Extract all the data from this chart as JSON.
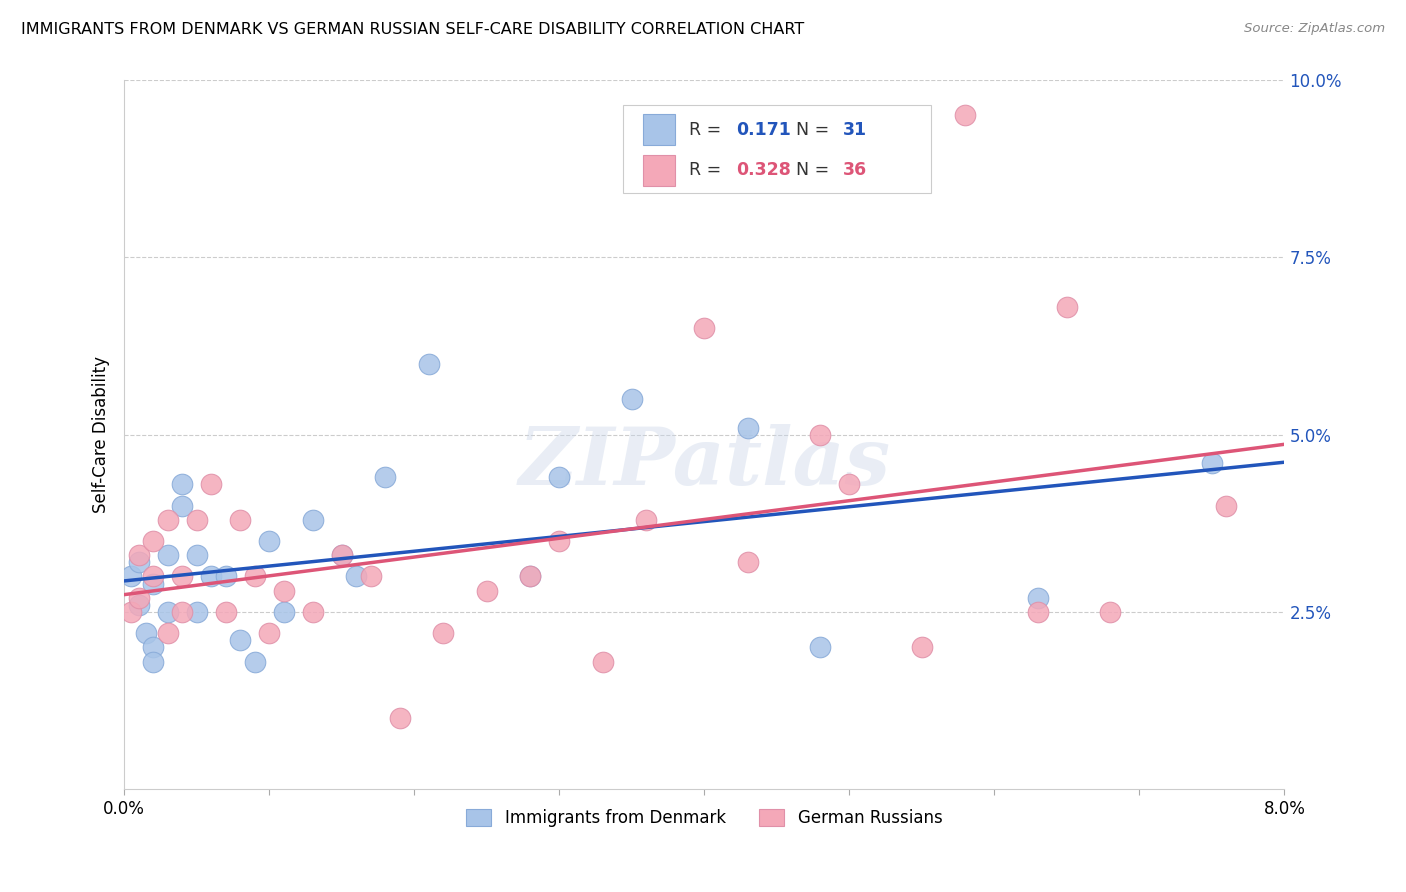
{
  "title": "IMMIGRANTS FROM DENMARK VS GERMAN RUSSIAN SELF-CARE DISABILITY CORRELATION CHART",
  "source": "Source: ZipAtlas.com",
  "ylabel": "Self-Care Disability",
  "xlim": [
    0.0,
    0.08
  ],
  "ylim": [
    0.0,
    0.1
  ],
  "color_blue": "#a8c4e8",
  "color_pink": "#f4a8b8",
  "line_color_blue": "#2255bb",
  "line_color_pink": "#dd5577",
  "denmark_x": [
    0.0005,
    0.001,
    0.001,
    0.0015,
    0.002,
    0.002,
    0.002,
    0.003,
    0.003,
    0.004,
    0.004,
    0.005,
    0.005,
    0.006,
    0.007,
    0.008,
    0.009,
    0.01,
    0.011,
    0.013,
    0.015,
    0.016,
    0.018,
    0.021,
    0.028,
    0.03,
    0.035,
    0.043,
    0.048,
    0.063,
    0.075
  ],
  "denmark_y": [
    0.03,
    0.032,
    0.026,
    0.022,
    0.029,
    0.02,
    0.018,
    0.033,
    0.025,
    0.04,
    0.043,
    0.033,
    0.025,
    0.03,
    0.03,
    0.021,
    0.018,
    0.035,
    0.025,
    0.038,
    0.033,
    0.03,
    0.044,
    0.06,
    0.03,
    0.044,
    0.055,
    0.051,
    0.02,
    0.027,
    0.046
  ],
  "german_x": [
    0.0005,
    0.001,
    0.001,
    0.002,
    0.002,
    0.003,
    0.003,
    0.004,
    0.004,
    0.005,
    0.006,
    0.007,
    0.008,
    0.009,
    0.01,
    0.011,
    0.013,
    0.015,
    0.017,
    0.019,
    0.022,
    0.025,
    0.028,
    0.03,
    0.033,
    0.036,
    0.04,
    0.043,
    0.048,
    0.05,
    0.055,
    0.058,
    0.063,
    0.065,
    0.068,
    0.076
  ],
  "german_y": [
    0.025,
    0.027,
    0.033,
    0.035,
    0.03,
    0.022,
    0.038,
    0.03,
    0.025,
    0.038,
    0.043,
    0.025,
    0.038,
    0.03,
    0.022,
    0.028,
    0.025,
    0.033,
    0.03,
    0.01,
    0.022,
    0.028,
    0.03,
    0.035,
    0.018,
    0.038,
    0.065,
    0.032,
    0.05,
    0.043,
    0.02,
    0.095,
    0.025,
    0.068,
    0.025,
    0.04
  ],
  "background_color": "#ffffff",
  "grid_color": "#cccccc",
  "watermark": "ZIPatlas",
  "R_denmark": "0.171",
  "N_denmark": "31",
  "R_german": "0.328",
  "N_german": "36",
  "reg_blue_m": 0.2667,
  "reg_blue_b": 0.0295,
  "reg_pink_m": 0.32,
  "reg_pink_b": 0.0258
}
